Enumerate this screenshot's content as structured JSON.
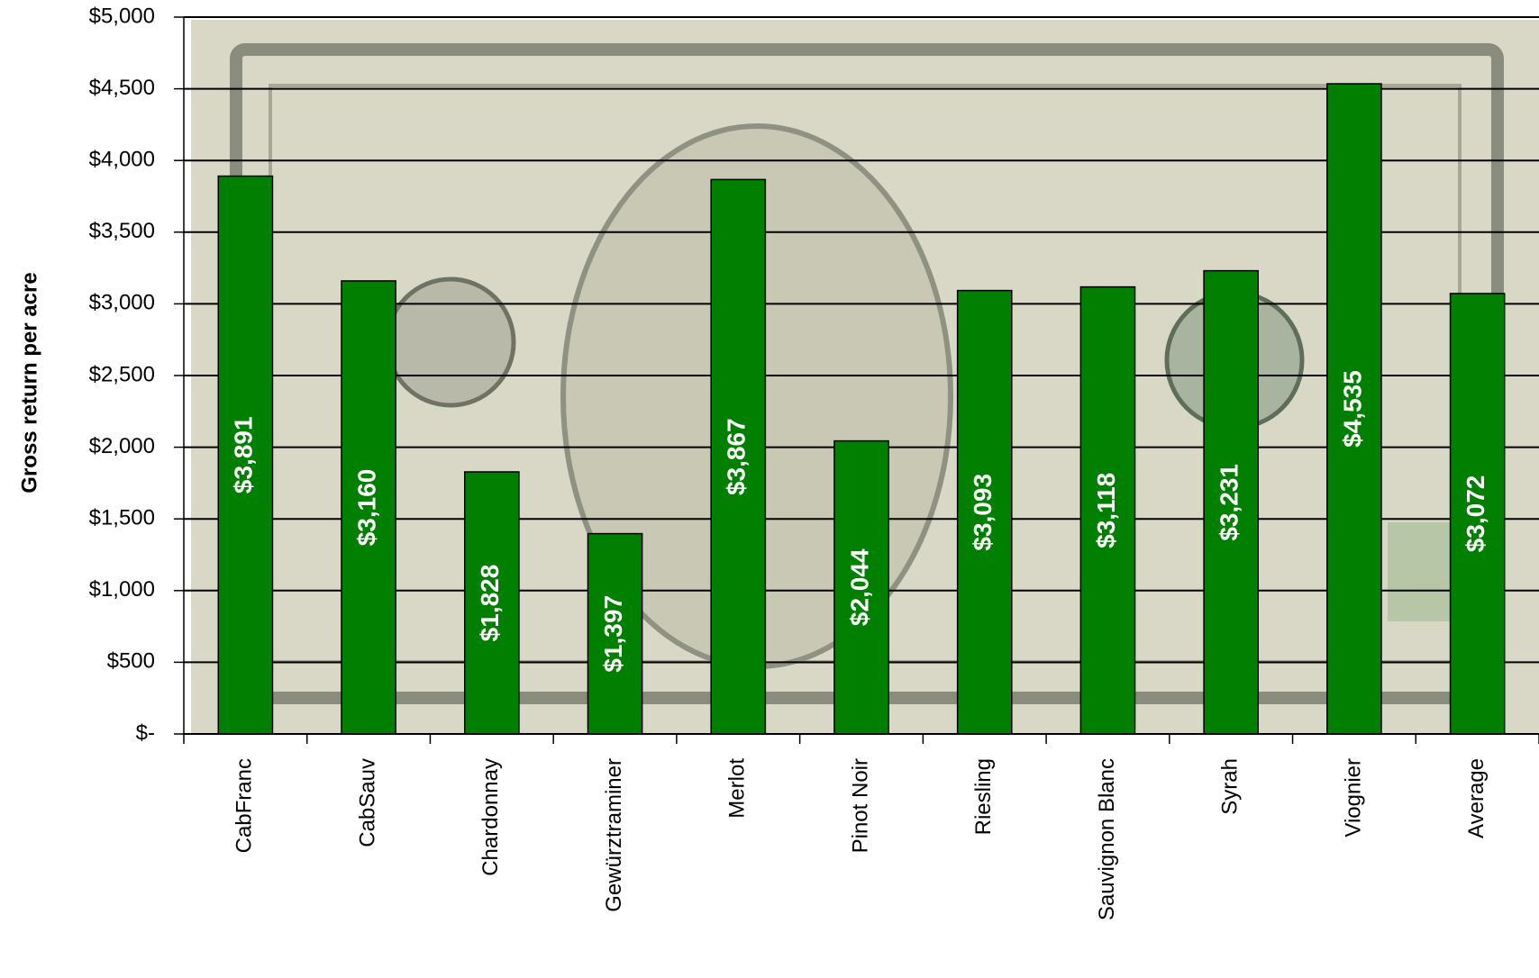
{
  "chart_data": {
    "type": "bar",
    "y_axis_label": "Gross return per acre",
    "categories": [
      "CabFranc",
      "CabSauv",
      "Chardonnay",
      "Gewürztraminer",
      "Merlot",
      "Pinot Noir",
      "Riesling",
      "Sauvignon Blanc",
      "Syrah",
      "Viognier",
      "Average"
    ],
    "values": [
      3891,
      3160,
      1828,
      1397,
      3867,
      2044,
      3093,
      3118,
      3231,
      4535,
      3072
    ],
    "value_labels": [
      "$3,891",
      "$3,160",
      "$1,828",
      "$1,397",
      "$3,867",
      "$2,044",
      "$3,093",
      "$3,118",
      "$3,231",
      "$4,535",
      "$3,072"
    ],
    "color": "#007f00",
    "ylim": [
      0,
      5000
    ],
    "yticks": [
      {
        "value": 0,
        "label": "$-"
      },
      {
        "value": 500,
        "label": "$500"
      },
      {
        "value": 1000,
        "label": "$1,000"
      },
      {
        "value": 1500,
        "label": "$1,500"
      },
      {
        "value": 2000,
        "label": "$2,000"
      },
      {
        "value": 2500,
        "label": "$2,500"
      },
      {
        "value": 3000,
        "label": "$3,000"
      },
      {
        "value": 3500,
        "label": "$3,500"
      },
      {
        "value": 4000,
        "label": "$4,000"
      },
      {
        "value": 4500,
        "label": "$4,500"
      },
      {
        "value": 5000,
        "label": "$5,000"
      }
    ],
    "grid": true
  }
}
